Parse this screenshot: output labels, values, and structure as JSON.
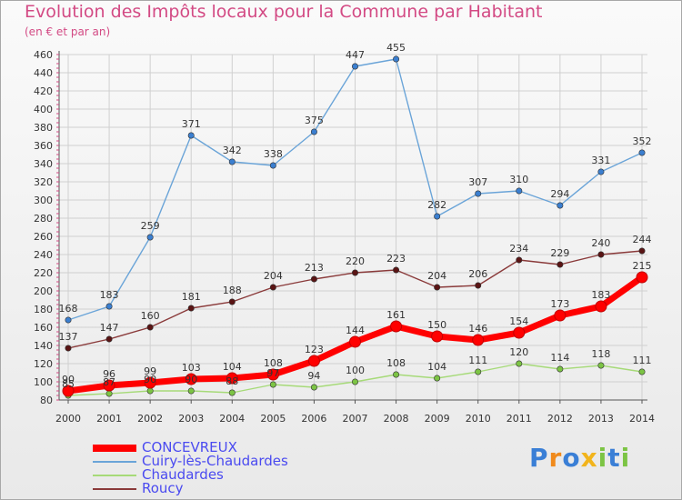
{
  "title": "Evolution des Impôts locaux pour la Commune par Habitant",
  "subtitle": "(en € et par an)",
  "logo": "Proxiti",
  "chart_data": {
    "type": "line",
    "x": [
      2000,
      2001,
      2002,
      2003,
      2004,
      2005,
      2006,
      2007,
      2008,
      2009,
      2010,
      2011,
      2012,
      2013,
      2014
    ],
    "ylim": [
      80,
      460
    ],
    "yticks": [
      80,
      100,
      120,
      140,
      160,
      180,
      200,
      220,
      240,
      260,
      280,
      300,
      320,
      340,
      360,
      380,
      400,
      420,
      440,
      460
    ],
    "grid": true,
    "legend_position": "bottom-left",
    "series": [
      {
        "name": "Cuiry-lès-Chaudardes",
        "color": "#6aa4d8",
        "marker_color": "#3b7fd0",
        "width": 1.4,
        "values": [
          168,
          183,
          259,
          371,
          342,
          338,
          375,
          447,
          455,
          282,
          307,
          310,
          294,
          331,
          352
        ]
      },
      {
        "name": "Roucy",
        "color": "#8a3a3a",
        "marker_color": "#5a1414",
        "width": 1.4,
        "values": [
          137,
          147,
          160,
          181,
          188,
          204,
          213,
          220,
          223,
          204,
          206,
          234,
          229,
          240,
          244
        ]
      },
      {
        "name": "Chaudardes",
        "color": "#a6da78",
        "marker_color": "#7cc444",
        "width": 1.4,
        "values": [
          85,
          87,
          90,
          90,
          88,
          97,
          94,
          100,
          108,
          104,
          111,
          120,
          114,
          118,
          111
        ]
      },
      {
        "name": "CONCEVREUX",
        "color": "#ff0000",
        "marker_color": "#ff0000",
        "width": 7,
        "values": [
          90,
          96,
          99,
          103,
          104,
          108,
          123,
          144,
          161,
          150,
          146,
          154,
          173,
          183,
          215
        ]
      }
    ],
    "legend_order": [
      "CONCEVREUX",
      "Cuiry-lès-Chaudardes",
      "Chaudardes",
      "Roucy"
    ]
  },
  "colors": {
    "title": "#d34a84",
    "legend_text": "#4a4af0",
    "axis": "#555555",
    "grid": "#d0d0d0"
  }
}
